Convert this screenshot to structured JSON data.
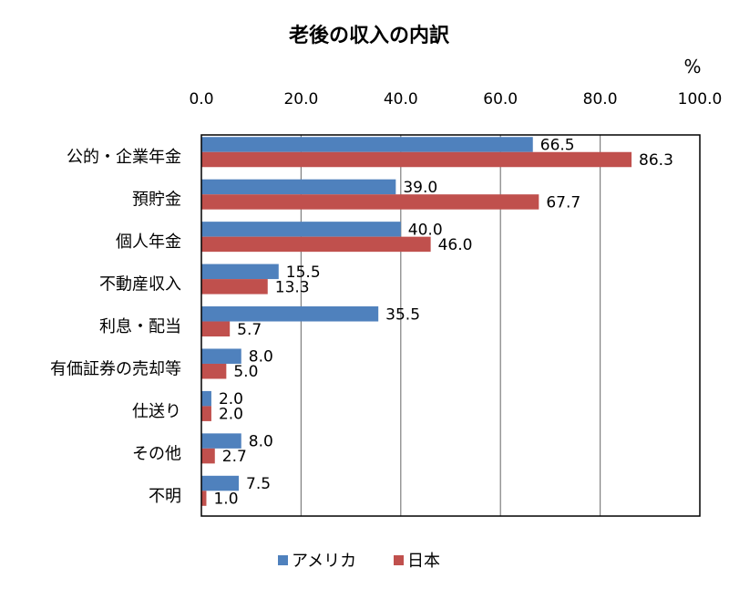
{
  "chart_data": {
    "type": "bar",
    "orientation": "horizontal",
    "title": "老後の収入の内訳",
    "unit": "%",
    "categories": [
      "公的・企業年金",
      "預貯金",
      "個人年金",
      "不動産収入",
      "利息・配当",
      "有価証券の売却等",
      "仕送り",
      "その他",
      "不明"
    ],
    "series": [
      {
        "name": "アメリカ",
        "color": "#4F81BD",
        "values": [
          66.5,
          39.0,
          40.0,
          15.5,
          35.5,
          8.0,
          2.0,
          8.0,
          7.5
        ]
      },
      {
        "name": "日本",
        "color": "#C0504D",
        "values": [
          86.3,
          67.7,
          46.0,
          13.3,
          5.7,
          5.0,
          2.0,
          2.7,
          1.0
        ]
      }
    ],
    "xlim": [
      0,
      100
    ],
    "xticks": [
      0,
      20,
      40,
      60,
      80,
      100
    ],
    "grid": true,
    "axis_position": "top",
    "legend": "bottom"
  }
}
